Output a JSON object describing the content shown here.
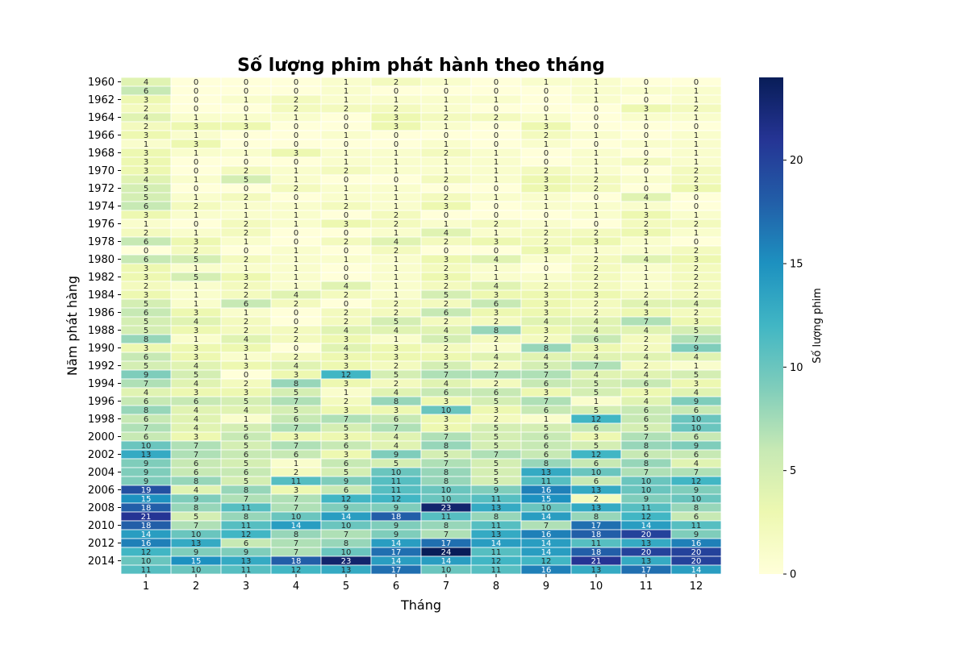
{
  "chart_data": {
    "type": "heatmap",
    "title": "Số lượng phim phát hành theo tháng",
    "xlabel": "Tháng",
    "ylabel": "Năm phát hàng",
    "colorbar_label": "Số lượng phim",
    "colorbar_ticks": [
      0,
      5,
      10,
      15,
      20
    ],
    "value_range": [
      0,
      24
    ],
    "colormap": "YlGnBu",
    "colormap_stops": [
      "#ffffd9",
      "#edf8b1",
      "#c7e9b4",
      "#7fcdbb",
      "#41b6c4",
      "#1d91c0",
      "#225ea8",
      "#253494",
      "#081d58"
    ],
    "x_categories": [
      "1",
      "2",
      "3",
      "4",
      "5",
      "6",
      "7",
      "8",
      "9",
      "10",
      "11",
      "12"
    ],
    "y_categories": [
      "1960",
      "1961",
      "1962",
      "1963",
      "1964",
      "1965",
      "1966",
      "1967",
      "1968",
      "1969",
      "1970",
      "1971",
      "1972",
      "1973",
      "1974",
      "1975",
      "1976",
      "1977",
      "1978",
      "1979",
      "1980",
      "1981",
      "1982",
      "1983",
      "1984",
      "1985",
      "1986",
      "1987",
      "1988",
      "1989",
      "1990",
      "1991",
      "1992",
      "1993",
      "1994",
      "1995",
      "1996",
      "1997",
      "1998",
      "1999",
      "2000",
      "2001",
      "2002",
      "2003",
      "2004",
      "2005",
      "2006",
      "2007",
      "2008",
      "2009",
      "2010",
      "2011",
      "2012",
      "2013",
      "2014",
      "2015"
    ],
    "y_tick_labels": [
      "1960",
      "1962",
      "1964",
      "1966",
      "1968",
      "1970",
      "1972",
      "1974",
      "1976",
      "1978",
      "1980",
      "1982",
      "1984",
      "1986",
      "1988",
      "1990",
      "1992",
      "1994",
      "1996",
      "1998",
      "2000",
      "2002",
      "2004",
      "2006",
      "2008",
      "2010",
      "2012",
      "2014"
    ],
    "values": [
      [
        4,
        0,
        0,
        0,
        1,
        2,
        1,
        0,
        1,
        1,
        0,
        0
      ],
      [
        6,
        0,
        0,
        0,
        1,
        0,
        0,
        0,
        0,
        1,
        1,
        1
      ],
      [
        3,
        0,
        1,
        2,
        1,
        1,
        1,
        1,
        0,
        1,
        0,
        1
      ],
      [
        2,
        0,
        0,
        2,
        2,
        2,
        1,
        0,
        0,
        0,
        3,
        2
      ],
      [
        4,
        1,
        1,
        1,
        0,
        3,
        2,
        2,
        1,
        0,
        1,
        1
      ],
      [
        2,
        3,
        3,
        0,
        0,
        3,
        1,
        0,
        3,
        0,
        0,
        0
      ],
      [
        3,
        1,
        0,
        0,
        1,
        0,
        0,
        0,
        2,
        1,
        0,
        1
      ],
      [
        1,
        3,
        0,
        0,
        0,
        0,
        1,
        0,
        1,
        0,
        1,
        1
      ],
      [
        3,
        1,
        1,
        3,
        1,
        1,
        2,
        1,
        0,
        1,
        0,
        1
      ],
      [
        3,
        0,
        0,
        0,
        1,
        1,
        1,
        1,
        0,
        1,
        2,
        1
      ],
      [
        3,
        0,
        2,
        1,
        2,
        1,
        1,
        1,
        2,
        1,
        0,
        2
      ],
      [
        4,
        1,
        5,
        1,
        0,
        0,
        2,
        1,
        3,
        2,
        1,
        2
      ],
      [
        5,
        0,
        0,
        2,
        1,
        1,
        0,
        0,
        3,
        2,
        0,
        3
      ],
      [
        5,
        1,
        2,
        0,
        1,
        1,
        2,
        1,
        1,
        0,
        4,
        0
      ],
      [
        6,
        2,
        1,
        1,
        2,
        1,
        3,
        0,
        1,
        1,
        1,
        0
      ],
      [
        3,
        1,
        1,
        1,
        0,
        2,
        0,
        0,
        0,
        1,
        3,
        1
      ],
      [
        1,
        0,
        2,
        1,
        3,
        2,
        1,
        2,
        1,
        0,
        2,
        2
      ],
      [
        2,
        1,
        2,
        0,
        0,
        1,
        4,
        1,
        2,
        2,
        3,
        1
      ],
      [
        6,
        3,
        1,
        0,
        2,
        4,
        2,
        3,
        2,
        3,
        1,
        0
      ],
      [
        0,
        2,
        0,
        1,
        0,
        2,
        0,
        0,
        3,
        1,
        1,
        2
      ],
      [
        6,
        5,
        2,
        1,
        1,
        1,
        3,
        4,
        1,
        2,
        4,
        3
      ],
      [
        3,
        1,
        1,
        1,
        0,
        1,
        2,
        1,
        0,
        2,
        1,
        2
      ],
      [
        3,
        5,
        3,
        1,
        0,
        1,
        3,
        1,
        1,
        2,
        1,
        2
      ],
      [
        2,
        1,
        2,
        1,
        4,
        1,
        2,
        4,
        2,
        2,
        1,
        2
      ],
      [
        3,
        1,
        2,
        4,
        2,
        1,
        5,
        3,
        3,
        3,
        2,
        2
      ],
      [
        5,
        1,
        6,
        2,
        0,
        2,
        2,
        6,
        3,
        2,
        4,
        4
      ],
      [
        6,
        3,
        1,
        0,
        2,
        2,
        6,
        3,
        3,
        2,
        3,
        2
      ],
      [
        5,
        4,
        2,
        0,
        2,
        5,
        2,
        2,
        4,
        4,
        7,
        3
      ],
      [
        5,
        3,
        2,
        2,
        4,
        4,
        4,
        8,
        3,
        4,
        4,
        5
      ],
      [
        8,
        1,
        4,
        2,
        3,
        1,
        5,
        2,
        2,
        6,
        2,
        7
      ],
      [
        3,
        3,
        3,
        0,
        4,
        3,
        2,
        1,
        8,
        3,
        2,
        9
      ],
      [
        6,
        3,
        1,
        2,
        3,
        3,
        3,
        4,
        4,
        4,
        4,
        4
      ],
      [
        5,
        4,
        3,
        4,
        3,
        2,
        5,
        2,
        5,
        7,
        2,
        1
      ],
      [
        9,
        5,
        0,
        3,
        12,
        5,
        7,
        7,
        7,
        4,
        4,
        5
      ],
      [
        7,
        4,
        2,
        8,
        3,
        2,
        4,
        2,
        6,
        5,
        6,
        3
      ],
      [
        4,
        3,
        3,
        5,
        1,
        4,
        6,
        6,
        3,
        5,
        3,
        4
      ],
      [
        6,
        6,
        5,
        7,
        2,
        8,
        3,
        5,
        7,
        1,
        4,
        9
      ],
      [
        8,
        4,
        4,
        5,
        3,
        3,
        10,
        3,
        6,
        5,
        6,
        6
      ],
      [
        6,
        4,
        1,
        6,
        7,
        6,
        3,
        2,
        1,
        12,
        6,
        10
      ],
      [
        7,
        4,
        5,
        7,
        5,
        7,
        3,
        5,
        5,
        6,
        5,
        10
      ],
      [
        6,
        3,
        6,
        3,
        3,
        4,
        7,
        5,
        6,
        3,
        7,
        6
      ],
      [
        10,
        7,
        5,
        7,
        6,
        4,
        8,
        5,
        6,
        5,
        8,
        9
      ],
      [
        13,
        7,
        6,
        6,
        3,
        9,
        5,
        7,
        6,
        12,
        6,
        6
      ],
      [
        9,
        6,
        5,
        1,
        6,
        5,
        7,
        5,
        8,
        6,
        8,
        4
      ],
      [
        9,
        6,
        6,
        2,
        5,
        10,
        8,
        5,
        13,
        10,
        7,
        7
      ],
      [
        9,
        8,
        5,
        11,
        9,
        11,
        8,
        5,
        11,
        6,
        10,
        12
      ],
      [
        19,
        4,
        8,
        3,
        6,
        11,
        10,
        9,
        16,
        13,
        10,
        9
      ],
      [
        15,
        9,
        7,
        7,
        12,
        12,
        10,
        11,
        15,
        2,
        9,
        10
      ],
      [
        18,
        8,
        11,
        7,
        9,
        9,
        23,
        13,
        10,
        13,
        11,
        8
      ],
      [
        21,
        5,
        8,
        10,
        14,
        18,
        11,
        8,
        14,
        8,
        12,
        6
      ],
      [
        18,
        7,
        11,
        14,
        10,
        9,
        8,
        11,
        7,
        17,
        14,
        11
      ],
      [
        14,
        10,
        12,
        8,
        7,
        9,
        7,
        13,
        16,
        18,
        20,
        9
      ],
      [
        16,
        13,
        6,
        7,
        8,
        14,
        17,
        14,
        14,
        11,
        13,
        16
      ],
      [
        12,
        9,
        9,
        7,
        10,
        17,
        24,
        11,
        14,
        18,
        20,
        20
      ],
      [
        10,
        15,
        13,
        18,
        23,
        14,
        14,
        12,
        12,
        21,
        13,
        20
      ],
      [
        11,
        10,
        11,
        12,
        13,
        17,
        10,
        11,
        16,
        13,
        17,
        14
      ]
    ]
  }
}
